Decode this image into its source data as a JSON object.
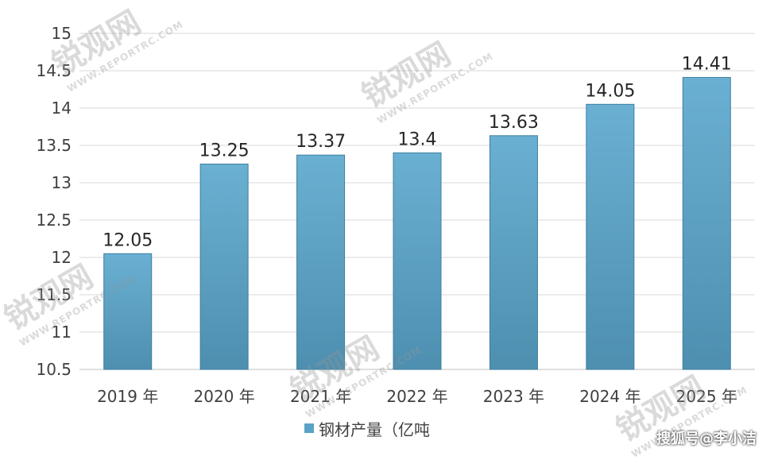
{
  "chart_data": {
    "type": "bar",
    "categories": [
      "2019 年",
      "2020 年",
      "2021 年",
      "2022 年",
      "2023 年",
      "2024 年",
      "2025 年"
    ],
    "series": [
      {
        "name": "钢材产量（亿吨",
        "values": [
          12.05,
          13.25,
          13.37,
          13.4,
          13.63,
          14.05,
          14.41
        ]
      }
    ],
    "data_labels": [
      "12.05",
      "13.25",
      "13.37",
      "13.4",
      "13.63",
      "14.05",
      "14.41"
    ],
    "ylim": [
      10.5,
      15
    ],
    "y_ticks": [
      "10.5",
      "11",
      "11.5",
      "12",
      "12.5",
      "13",
      "13.5",
      "14",
      "14.5",
      "15"
    ],
    "grid": true,
    "legend_position": "bottom",
    "bar_color": "#5ba3c6",
    "bar_color_dark": "#3d7f9f"
  },
  "watermark": {
    "brand": "锐观网",
    "url": "WWW.REPORTRC.COM"
  },
  "source_tag": "搜狐号@李小洁"
}
